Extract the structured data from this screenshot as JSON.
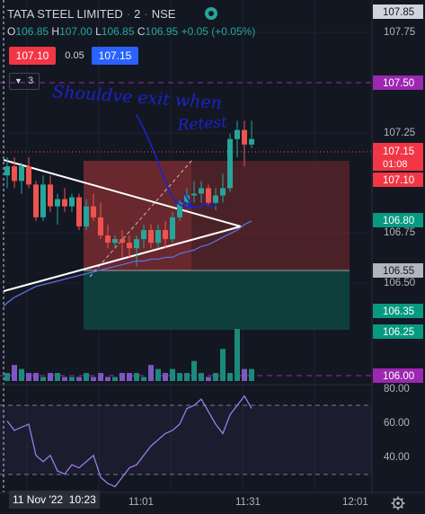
{
  "header": {
    "symbol": "TATA STEEL LIMITED",
    "interval": "2",
    "exchange": "NSE",
    "ohlc": {
      "o_label": "O",
      "o": "106.85",
      "h_label": "H",
      "h": "107.00",
      "l_label": "L",
      "l": "106.85",
      "c_label": "C",
      "c": "106.95",
      "change": "+0.05 (+0.05%)"
    }
  },
  "trade": {
    "sell": "107.10",
    "spread": "0.05",
    "buy": "107.15"
  },
  "indicators_toggle": {
    "count": "3"
  },
  "annotation": {
    "line1": "Shouldve exit when",
    "line2": "Retest"
  },
  "axis": {
    "price_ticks": [
      "107.75",
      "107.25",
      "106.75",
      "106.50"
    ],
    "rsi_ticks": [
      "80.00",
      "60.00",
      "40.00"
    ],
    "time_ticks": [
      "11:01",
      "11:31",
      "12:01"
    ],
    "cursor_date": "11 Nov '22",
    "cursor_time": "10:23"
  },
  "price_labels": {
    "high": "107.85",
    "level_top": "107.50",
    "last": "107.15",
    "countdown": "01:08",
    "bid": "107.10",
    "level_mid": "106.80",
    "level_low": "106.55",
    "level_r1": "106.35",
    "level_r2": "106.25",
    "level_bottom": "106.00"
  },
  "colors": {
    "background": "#131722",
    "up": "#26a69a",
    "down": "#ef5350",
    "volume_up": "#1b8a7b",
    "volume_down": "#7e57c2",
    "ma": "#5b6ee1",
    "rsi": "#9c7be8",
    "dashed_level": "#9c27b0",
    "ink": "#1e22c8",
    "stop_zone": "#7a2a2e",
    "target_zone": "#0f4a45"
  },
  "chart_data": {
    "type": "candlestick",
    "symbol": "TATA STEEL LIMITED",
    "interval": "2",
    "times": [
      "10:23",
      "10:25",
      "10:27",
      "10:29",
      "10:31",
      "10:33",
      "10:35",
      "10:37",
      "10:39",
      "10:41",
      "10:43",
      "10:45",
      "10:47",
      "10:49",
      "10:51",
      "10:53",
      "10:55",
      "10:57",
      "10:59",
      "11:01",
      "11:03",
      "11:05",
      "11:07",
      "11:09",
      "11:11",
      "11:13",
      "11:15",
      "11:17",
      "11:19",
      "11:21",
      "11:23",
      "11:25",
      "11:27",
      "11:29",
      "11:31"
    ],
    "candles": [
      {
        "o": 106.95,
        "h": 107.05,
        "l": 106.88,
        "c": 107.0
      },
      {
        "o": 107.0,
        "h": 107.05,
        "l": 106.88,
        "c": 106.92
      },
      {
        "o": 106.92,
        "h": 107.02,
        "l": 106.85,
        "c": 107.0
      },
      {
        "o": 107.0,
        "h": 107.05,
        "l": 106.88,
        "c": 106.9
      },
      {
        "o": 106.9,
        "h": 106.92,
        "l": 106.7,
        "c": 106.72
      },
      {
        "o": 106.72,
        "h": 106.95,
        "l": 106.7,
        "c": 106.9
      },
      {
        "o": 106.9,
        "h": 106.95,
        "l": 106.75,
        "c": 106.78
      },
      {
        "o": 106.78,
        "h": 106.85,
        "l": 106.68,
        "c": 106.82
      },
      {
        "o": 106.82,
        "h": 106.88,
        "l": 106.75,
        "c": 106.78
      },
      {
        "o": 106.78,
        "h": 106.85,
        "l": 106.75,
        "c": 106.83
      },
      {
        "o": 106.83,
        "h": 106.85,
        "l": 106.65,
        "c": 106.67
      },
      {
        "o": 106.67,
        "h": 106.82,
        "l": 106.65,
        "c": 106.78
      },
      {
        "o": 106.78,
        "h": 106.85,
        "l": 106.7,
        "c": 106.72
      },
      {
        "o": 106.72,
        "h": 106.8,
        "l": 106.6,
        "c": 106.62
      },
      {
        "o": 106.62,
        "h": 106.68,
        "l": 106.55,
        "c": 106.58
      },
      {
        "o": 106.58,
        "h": 106.62,
        "l": 106.55,
        "c": 106.6
      },
      {
        "o": 106.6,
        "h": 106.65,
        "l": 106.5,
        "c": 106.58
      },
      {
        "o": 106.58,
        "h": 106.62,
        "l": 106.5,
        "c": 106.55
      },
      {
        "o": 106.55,
        "h": 106.62,
        "l": 106.45,
        "c": 106.6
      },
      {
        "o": 106.6,
        "h": 106.68,
        "l": 106.55,
        "c": 106.65
      },
      {
        "o": 106.65,
        "h": 106.68,
        "l": 106.55,
        "c": 106.58
      },
      {
        "o": 106.58,
        "h": 106.68,
        "l": 106.55,
        "c": 106.65
      },
      {
        "o": 106.65,
        "h": 106.7,
        "l": 106.55,
        "c": 106.6
      },
      {
        "o": 106.6,
        "h": 106.75,
        "l": 106.58,
        "c": 106.72
      },
      {
        "o": 106.72,
        "h": 106.82,
        "l": 106.7,
        "c": 106.8
      },
      {
        "o": 106.8,
        "h": 106.88,
        "l": 106.76,
        "c": 106.84
      },
      {
        "o": 106.84,
        "h": 106.92,
        "l": 106.8,
        "c": 106.85
      },
      {
        "o": 106.85,
        "h": 106.92,
        "l": 106.8,
        "c": 106.88
      },
      {
        "o": 106.88,
        "h": 106.9,
        "l": 106.78,
        "c": 106.8
      },
      {
        "o": 106.8,
        "h": 106.88,
        "l": 106.76,
        "c": 106.84
      },
      {
        "o": 106.84,
        "h": 106.96,
        "l": 106.8,
        "c": 106.88
      },
      {
        "o": 106.88,
        "h": 107.18,
        "l": 106.86,
        "c": 107.15
      },
      {
        "o": 107.15,
        "h": 107.25,
        "l": 107.05,
        "c": 107.2
      },
      {
        "o": 107.2,
        "h": 107.25,
        "l": 107.0,
        "c": 107.12
      },
      {
        "o": 107.12,
        "h": 107.25,
        "l": 107.1,
        "c": 107.15
      }
    ],
    "volume": [
      2,
      4,
      3,
      2,
      2,
      1,
      2,
      2,
      1,
      1,
      1,
      2,
      1,
      2,
      1,
      1,
      2,
      2,
      2,
      1,
      4,
      3,
      2,
      3,
      2,
      2,
      5,
      2,
      1,
      2,
      8,
      2,
      13,
      3,
      3
    ],
    "moving_average": [
      106.25,
      106.28,
      106.3,
      106.32,
      106.34,
      106.35,
      106.36,
      106.37,
      106.38,
      106.39,
      106.4,
      106.41,
      106.42,
      106.43,
      106.44,
      106.45,
      106.46,
      106.47,
      106.48,
      106.48,
      106.49,
      106.49,
      106.5,
      106.5,
      106.52,
      106.53,
      106.54,
      106.56,
      106.57,
      106.59,
      106.61,
      106.63,
      106.65,
      106.68,
      106.7
    ],
    "rsi": [
      64,
      58,
      60,
      62,
      42,
      38,
      42,
      32,
      30,
      36,
      34,
      38,
      42,
      28,
      24,
      22,
      28,
      34,
      36,
      42,
      48,
      52,
      56,
      58,
      62,
      72,
      74,
      78,
      70,
      62,
      56,
      68,
      74,
      80,
      72
    ],
    "rsi_levels": [
      70,
      30
    ],
    "price_range": [
      105.85,
      107.85
    ],
    "rsi_range": [
      20,
      85
    ]
  }
}
